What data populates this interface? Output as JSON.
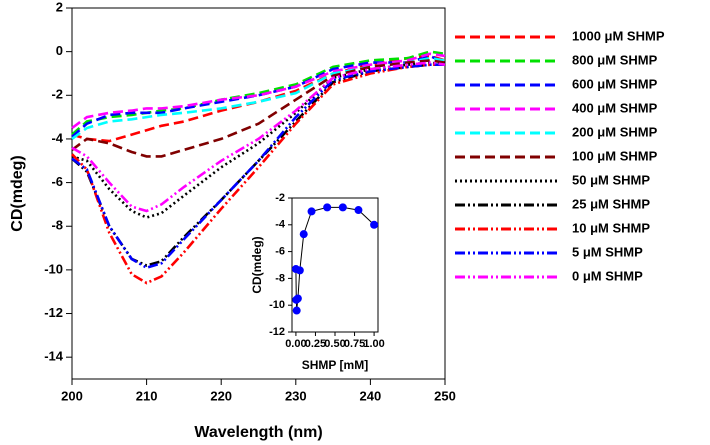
{
  "chart_data": [
    {
      "type": "line",
      "x_label": "Wavelength (nm)",
      "y_label": "CD(mdeg)",
      "xlim": [
        200,
        250
      ],
      "xticks": [
        200,
        210,
        220,
        230,
        240,
        250
      ],
      "ylim": [
        -15,
        2
      ],
      "yticks": [
        -14,
        -12,
        -10,
        -8,
        -6,
        -4,
        -2,
        0,
        2
      ],
      "legend": "right",
      "x": [
        200,
        202,
        205,
        208,
        210,
        212,
        215,
        220,
        225,
        230,
        235,
        240,
        245,
        248,
        250
      ],
      "series": [
        {
          "name": "1000 μM SHMP",
          "color": "#ff0000",
          "style": "dashed",
          "values": [
            -3.8,
            -4.0,
            -4.1,
            -3.8,
            -3.6,
            -3.4,
            -3.2,
            -2.7,
            -2.3,
            -1.8,
            -1.0,
            -0.6,
            -0.3,
            -0.2,
            -0.4
          ]
        },
        {
          "name": "800 μM SHMP",
          "color": "#00e000",
          "style": "dashed",
          "values": [
            -3.8,
            -3.2,
            -3.0,
            -2.9,
            -2.8,
            -2.7,
            -2.6,
            -2.2,
            -1.9,
            -1.5,
            -0.7,
            -0.4,
            -0.3,
            0.0,
            -0.1
          ]
        },
        {
          "name": "600 μM SHMP",
          "color": "#0000ff",
          "style": "dashed",
          "values": [
            -3.9,
            -3.3,
            -2.9,
            -2.8,
            -2.8,
            -2.8,
            -2.6,
            -2.3,
            -2.0,
            -1.6,
            -0.8,
            -0.5,
            -0.5,
            -0.2,
            -0.5
          ]
        },
        {
          "name": "400 μM SHMP",
          "color": "#ff00ff",
          "style": "dashed",
          "values": [
            -3.5,
            -3.0,
            -2.8,
            -2.7,
            -2.6,
            -2.6,
            -2.5,
            -2.2,
            -2.0,
            -1.6,
            -0.9,
            -0.6,
            -0.4,
            -0.1,
            -0.2
          ]
        },
        {
          "name": "200 μM SHMP",
          "color": "#00ffff",
          "style": "dashed",
          "values": [
            -4.0,
            -3.5,
            -3.2,
            -3.1,
            -3.0,
            -2.9,
            -2.8,
            -2.6,
            -2.3,
            -1.9,
            -1.0,
            -0.7,
            -0.5,
            -0.3,
            -0.4
          ]
        },
        {
          "name": "100 μM SHMP",
          "color": "#800000",
          "style": "dashed",
          "values": [
            -4.5,
            -4.0,
            -4.2,
            -4.6,
            -4.8,
            -4.8,
            -4.5,
            -4.0,
            -3.3,
            -2.2,
            -1.1,
            -0.7,
            -0.5,
            -0.4,
            -0.5
          ]
        },
        {
          "name": "50 μM SHMP",
          "color": "#000000",
          "style": "dotted",
          "values": [
            -4.8,
            -5.0,
            -6.3,
            -7.3,
            -7.6,
            -7.4,
            -6.6,
            -5.3,
            -4.2,
            -2.8,
            -1.2,
            -0.8,
            -0.6,
            -0.5,
            -0.6
          ]
        },
        {
          "name": "25 μM SHMP",
          "color": "#000000",
          "style": "dash-dot-dot",
          "values": [
            -4.9,
            -5.5,
            -8.0,
            -9.5,
            -9.8,
            -9.6,
            -8.5,
            -6.8,
            -5.0,
            -3.2,
            -1.4,
            -0.9,
            -0.7,
            -0.6,
            -0.6
          ]
        },
        {
          "name": "10 μM SHMP",
          "color": "#ff0000",
          "style": "dash-dot-dot",
          "values": [
            -4.7,
            -5.4,
            -8.3,
            -10.2,
            -10.6,
            -10.3,
            -9.2,
            -7.2,
            -5.3,
            -3.3,
            -1.5,
            -1.0,
            -0.7,
            -0.6,
            -0.6
          ]
        },
        {
          "name": "5 μM SHMP",
          "color": "#0000ff",
          "style": "dash-dot-dot",
          "values": [
            -4.9,
            -5.4,
            -8.0,
            -9.5,
            -9.9,
            -9.7,
            -8.6,
            -6.8,
            -5.0,
            -3.0,
            -1.3,
            -0.9,
            -0.7,
            -0.6,
            -0.6
          ]
        },
        {
          "name": "0 μM SHMP",
          "color": "#ff00ff",
          "style": "dash-dot-dot",
          "values": [
            -4.4,
            -4.8,
            -6.0,
            -7.1,
            -7.3,
            -7.0,
            -6.2,
            -5.0,
            -4.0,
            -2.7,
            -1.2,
            -0.8,
            -0.6,
            -0.5,
            -0.6
          ]
        }
      ]
    },
    {
      "type": "line",
      "markers": true,
      "x_label": "SHMP [mM]",
      "y_label": "CD(mdeg)",
      "xlim": [
        -0.05,
        1.05
      ],
      "xticks": [
        {
          "value": 0,
          "label": "0.00"
        },
        {
          "value": 0.25,
          "label": "0.25"
        },
        {
          "value": 0.5,
          "label": "0.50"
        },
        {
          "value": 0.75,
          "label": "0.75"
        },
        {
          "value": 1,
          "label": "1.00"
        }
      ],
      "ylim": [
        -12,
        -2
      ],
      "yticks": [
        -12,
        -10,
        -8,
        -6,
        -4,
        -2
      ],
      "x": [
        0,
        0.005,
        0.01,
        0.025,
        0.05,
        0.1,
        0.2,
        0.4,
        0.6,
        0.8,
        1.0
      ],
      "series": [
        {
          "color": "#0000ff",
          "values": [
            -7.3,
            -9.6,
            -10.4,
            -9.5,
            -7.4,
            -4.7,
            -3.0,
            -2.7,
            -2.7,
            -2.9,
            -4.0
          ]
        }
      ]
    }
  ]
}
